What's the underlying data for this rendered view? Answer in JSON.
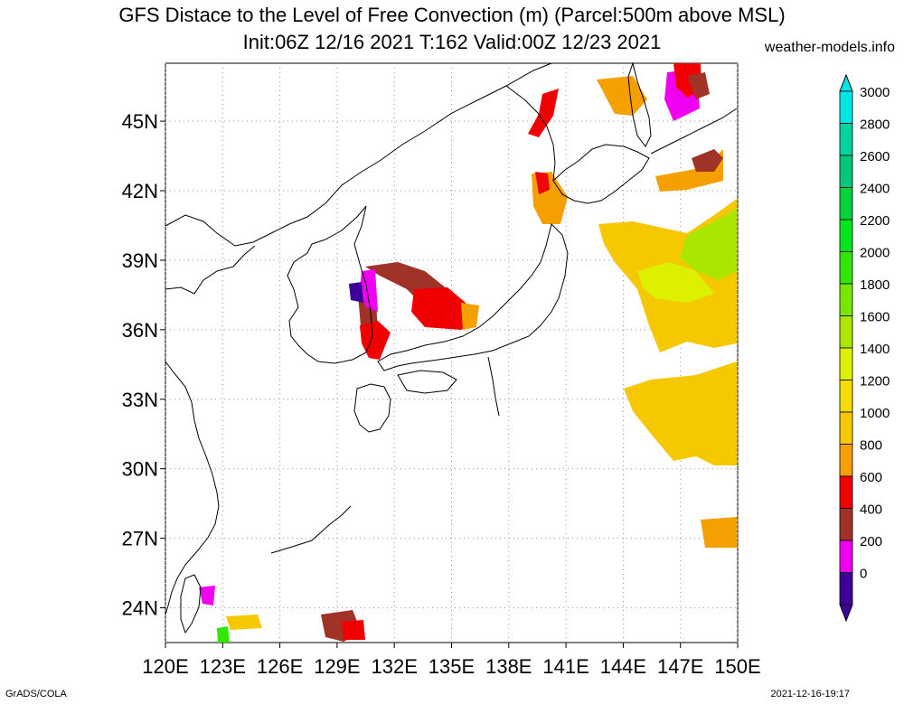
{
  "header": {
    "title_line1": "GFS Distace to the Level of Free Convection (m) (Parcel:500m above MSL)",
    "title_line2": "Init:06Z 12/16 2021 T:162 Valid:00Z 12/23 2021",
    "source": "weather-models.info"
  },
  "map": {
    "lon_range": [
      120,
      150
    ],
    "lat_range": [
      22.5,
      47.5
    ],
    "lat_ticks": [
      "45N",
      "42N",
      "39N",
      "36N",
      "33N",
      "30N",
      "27N",
      "24N"
    ],
    "lat_values": [
      45,
      42,
      39,
      36,
      33,
      30,
      27,
      24
    ],
    "lon_ticks": [
      "120E",
      "123E",
      "126E",
      "129E",
      "132E",
      "135E",
      "138E",
      "141E",
      "144E",
      "147E",
      "150E"
    ],
    "lon_values": [
      120,
      123,
      126,
      129,
      132,
      135,
      138,
      141,
      144,
      147,
      150
    ],
    "grid": "dotted"
  },
  "colorbar": {
    "labels": [
      "3000",
      "2800",
      "2600",
      "2400",
      "2200",
      "2000",
      "1800",
      "1600",
      "1400",
      "1200",
      "1000",
      "800",
      "600",
      "400",
      "200",
      "0"
    ],
    "colors": [
      "#00e5e5",
      "#00d2a0",
      "#00c87a",
      "#00d23c",
      "#00e61e",
      "#32e600",
      "#78e600",
      "#aae600",
      "#dcf000",
      "#f5dc00",
      "#f5c800",
      "#f5a000",
      "#f00000",
      "#a03228",
      "#f000f0",
      "#3c0096"
    ],
    "top_arrow_color": "#00e5e5",
    "bottom_arrow_color": "#3c0096"
  },
  "footer": {
    "left": "GrADS/COLA",
    "right": "2021-12-16-19:17"
  }
}
